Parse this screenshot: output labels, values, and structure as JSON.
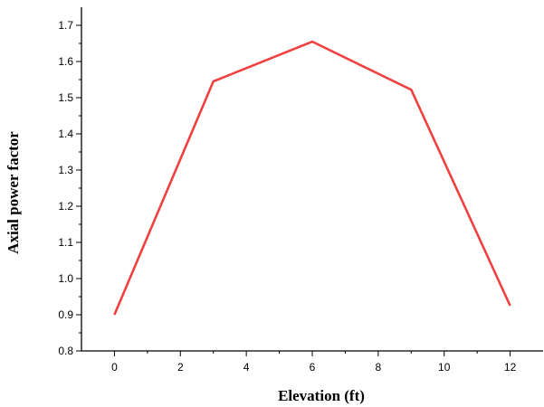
{
  "chart_data": {
    "type": "line",
    "title": "",
    "xlabel": "Elevation (ft)",
    "ylabel": "Axial power factor",
    "xlim": [
      -1,
      13
    ],
    "ylim": [
      0.8,
      1.75
    ],
    "xticks": [
      0,
      2,
      4,
      6,
      8,
      10,
      12
    ],
    "yticks": [
      0.8,
      0.9,
      1.0,
      1.1,
      1.2,
      1.3,
      1.4,
      1.5,
      1.6,
      1.7
    ],
    "ytick_labels": [
      "0.8",
      "0.9",
      "1.0",
      "1.1",
      "1.2",
      "1.3",
      "1.4",
      "1.5",
      "1.6",
      "1.7"
    ],
    "grid": false,
    "legend": "none",
    "series": [
      {
        "color": "#f04040",
        "x": [
          0,
          3,
          6,
          9,
          12
        ],
        "y": [
          0.9,
          1.545,
          1.655,
          1.522,
          0.925
        ]
      }
    ]
  }
}
